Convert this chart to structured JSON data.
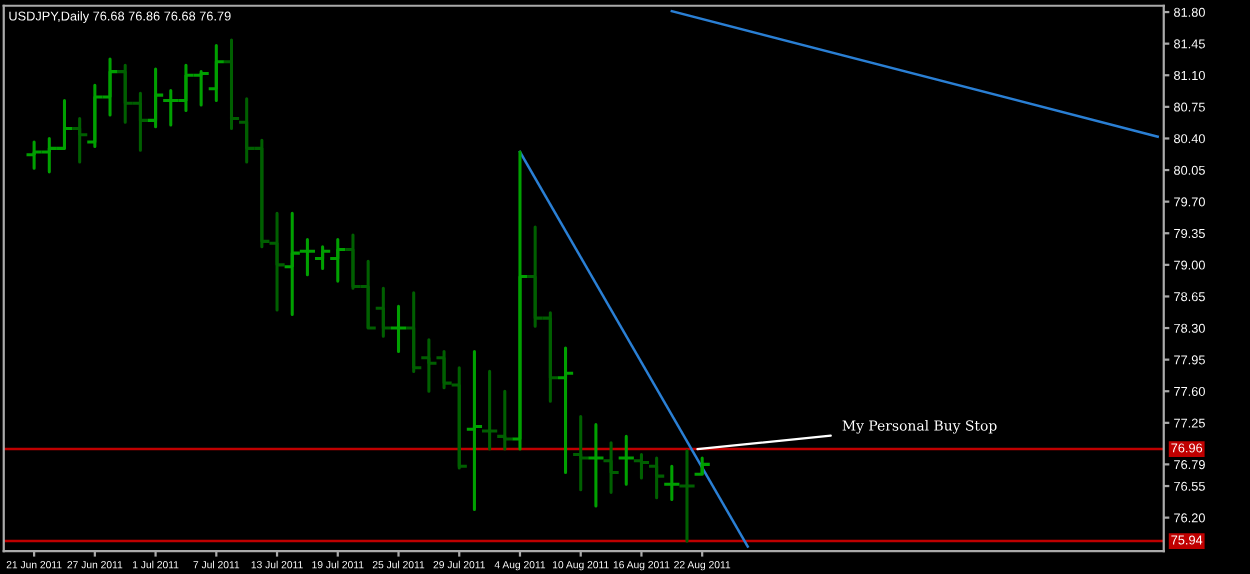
{
  "chart_data": {
    "type": "candlestick",
    "title": "USDJPY,Daily 76.68 76.86 76.68 76.79",
    "categories": [
      "21 Jun 2011",
      null,
      null,
      null,
      "27 Jun 2011",
      null,
      null,
      null,
      "1 Jul 2011",
      null,
      null,
      null,
      "7 Jul 2011",
      null,
      null,
      null,
      "13 Jul 2011",
      null,
      null,
      null,
      "19 Jul 2011",
      null,
      null,
      null,
      "25 Jul 2011",
      null,
      null,
      null,
      "29 Jul 2011",
      null,
      null,
      null,
      "4 Aug 2011",
      null,
      null,
      null,
      "10 Aug 2011",
      null,
      null,
      null,
      "16 Aug 2011",
      null,
      null,
      null,
      "22 Aug 2011",
      null,
      null,
      null,
      null,
      null,
      null,
      null,
      null,
      null,
      null,
      null,
      null,
      null,
      null,
      null,
      null,
      null,
      null,
      null,
      null,
      null,
      null,
      null,
      null,
      null,
      null,
      null,
      null,
      null,
      null
    ],
    "ohlc": [
      [
        80.22,
        80.36,
        80.07,
        80.25
      ],
      [
        80.25,
        80.4,
        80.03,
        80.29
      ],
      [
        80.29,
        80.82,
        80.29,
        80.51
      ],
      [
        80.51,
        80.62,
        80.14,
        80.44
      ],
      [
        80.36,
        80.99,
        80.31,
        80.86
      ],
      [
        80.86,
        81.28,
        80.66,
        81.14
      ],
      [
        81.14,
        81.21,
        80.58,
        80.79
      ],
      [
        80.79,
        80.9,
        80.27,
        80.6
      ],
      [
        80.6,
        81.17,
        80.53,
        80.88
      ],
      [
        80.82,
        80.93,
        80.55,
        80.82
      ],
      [
        80.82,
        81.21,
        80.71,
        81.1
      ],
      [
        81.1,
        81.14,
        80.77,
        81.12
      ],
      [
        80.95,
        81.43,
        80.82,
        81.25
      ],
      [
        81.25,
        81.49,
        80.51,
        80.62
      ],
      [
        80.58,
        80.84,
        80.14,
        80.29
      ],
      [
        80.29,
        80.38,
        79.2,
        79.26
      ],
      [
        79.24,
        79.57,
        78.5,
        79.0
      ],
      [
        78.98,
        79.57,
        78.45,
        79.13
      ],
      [
        79.15,
        79.28,
        78.89,
        79.15
      ],
      [
        79.07,
        79.2,
        78.96,
        79.15
      ],
      [
        79.07,
        79.28,
        78.82,
        79.17
      ],
      [
        79.17,
        79.33,
        78.74,
        78.76
      ],
      [
        78.76,
        79.04,
        78.3,
        78.3
      ],
      [
        78.52,
        78.74,
        78.21,
        78.3
      ],
      [
        78.3,
        78.54,
        78.04,
        78.3
      ],
      [
        78.3,
        78.69,
        77.82,
        77.86
      ],
      [
        77.97,
        78.17,
        77.6,
        77.91
      ],
      [
        77.97,
        78.04,
        77.64,
        77.69
      ],
      [
        77.67,
        77.86,
        76.75,
        76.77
      ],
      [
        77.18,
        78.04,
        76.29,
        77.21
      ],
      [
        77.16,
        77.82,
        76.96,
        77.16
      ],
      [
        77.1,
        77.6,
        76.96,
        77.07
      ],
      [
        77.07,
        80.25,
        76.96,
        78.87
      ],
      [
        78.87,
        79.42,
        78.32,
        78.41
      ],
      [
        78.41,
        78.47,
        77.49,
        77.75
      ],
      [
        77.75,
        78.08,
        76.7,
        77.8
      ],
      [
        76.9,
        77.32,
        76.51,
        76.86
      ],
      [
        76.86,
        77.23,
        76.33,
        76.86
      ],
      [
        76.83,
        77.03,
        76.48,
        76.7
      ],
      [
        76.86,
        77.1,
        76.57,
        76.86
      ],
      [
        76.83,
        76.9,
        76.64,
        76.81
      ],
      [
        76.77,
        76.86,
        76.42,
        76.66
      ],
      [
        76.57,
        76.77,
        76.4,
        76.57
      ],
      [
        76.55,
        76.94,
        75.94,
        76.55
      ],
      [
        76.68,
        76.86,
        76.68,
        76.79
      ],
      null,
      null,
      null,
      null,
      null,
      null,
      null,
      null,
      null,
      null,
      null,
      null,
      null,
      null,
      null,
      null,
      null,
      null,
      null,
      null,
      null,
      null,
      null,
      null,
      null,
      null,
      null,
      null,
      null,
      null
    ],
    "colors": [
      "#00a000",
      "#00a000",
      "#00a000",
      "#005f00",
      "#00a000",
      "#00a000",
      "#005f00",
      "#005f00",
      "#00a000",
      "#00a000",
      "#00a000",
      "#00a000",
      "#00a000",
      "#005f00",
      "#005f00",
      "#005f00",
      "#005f00",
      "#00a000",
      "#00a000",
      "#00a000",
      "#00a000",
      "#005f00",
      "#005f00",
      "#005f00",
      "#00a000",
      "#005f00",
      "#005f00",
      "#005f00",
      "#005f00",
      "#00a000",
      "#005f00",
      "#005f00",
      "#00a000",
      "#005f00",
      "#005f00",
      "#00a000",
      "#005f00",
      "#00a000",
      "#005f00",
      "#00a000",
      "#005f00",
      "#005f00",
      "#00a000",
      "#005f00",
      "#00a000",
      null,
      null,
      null,
      null,
      null,
      null,
      null,
      null,
      null,
      null,
      null,
      null,
      null,
      null,
      null,
      null,
      null,
      null,
      null,
      null,
      null,
      null,
      null,
      null,
      null,
      null,
      null,
      null,
      null,
      null
    ],
    "series": [
      {
        "type": "line",
        "values": [
          null,
          null,
          null,
          null,
          null,
          null,
          null,
          null,
          null,
          null,
          null,
          null,
          null,
          null,
          null,
          null,
          null,
          null,
          null,
          null,
          null,
          null,
          null,
          null,
          null,
          null,
          null,
          null,
          null,
          null,
          null,
          null,
          80.25,
          null,
          null,
          null,
          null,
          null,
          null,
          null,
          null,
          null,
          null,
          null,
          null,
          null,
          null,
          75.88,
          null,
          null,
          null,
          null,
          null,
          null,
          null,
          null,
          null,
          null,
          null,
          null,
          null,
          null,
          null,
          null,
          null,
          null,
          null,
          null,
          null,
          null,
          null,
          null,
          null,
          null,
          null
        ],
        "color": "#2a7fd4"
      },
      {
        "type": "line",
        "values": [
          null,
          null,
          null,
          null,
          null,
          null,
          null,
          null,
          null,
          null,
          null,
          null,
          null,
          null,
          null,
          null,
          null,
          null,
          null,
          null,
          null,
          null,
          null,
          null,
          null,
          null,
          null,
          null,
          null,
          null,
          null,
          null,
          null,
          null,
          null,
          null,
          null,
          null,
          null,
          null,
          null,
          null,
          81.81,
          null,
          null,
          null,
          null,
          null,
          null,
          null,
          null,
          null,
          null,
          null,
          null,
          null,
          null,
          null,
          null,
          null,
          null,
          null,
          null,
          null,
          null,
          null,
          null,
          null,
          null,
          null,
          null,
          null,
          null,
          null,
          80.42
        ],
        "color": "#2a7fd4"
      }
    ],
    "ylim": [
      75.83,
      81.87
    ],
    "yticks": [
      {
        "value": 81.8,
        "label": "81.80"
      },
      {
        "value": 81.45,
        "label": "81.45"
      },
      {
        "value": 81.1,
        "label": "81.10"
      },
      {
        "value": 80.75,
        "label": "80.75"
      },
      {
        "value": 80.4,
        "label": "80.40"
      },
      {
        "value": 80.05,
        "label": "80.05"
      },
      {
        "value": 79.7,
        "label": "79.70"
      },
      {
        "value": 79.35,
        "label": "79.35"
      },
      {
        "value": 79.0,
        "label": "79.00"
      },
      {
        "value": 78.65,
        "label": "78.65"
      },
      {
        "value": 78.3,
        "label": "78.30"
      },
      {
        "value": 77.95,
        "label": "77.95"
      },
      {
        "value": 77.6,
        "label": "77.60"
      },
      {
        "value": 77.25,
        "label": "77.25"
      },
      {
        "value": 76.79,
        "label": "76.79"
      },
      {
        "value": 76.55,
        "label": "76.55"
      },
      {
        "value": 76.2,
        "label": "76.20"
      }
    ],
    "ref_lines": [
      {
        "axis": "y",
        "value": 76.96,
        "label": "76.96",
        "color": "#c00000"
      },
      {
        "axis": "y",
        "value": 75.94,
        "label": "75.94",
        "color": "#c00000"
      }
    ],
    "annotations": [
      {
        "text": "My Personal Buy Stop",
        "y": 76.96
      }
    ]
  }
}
